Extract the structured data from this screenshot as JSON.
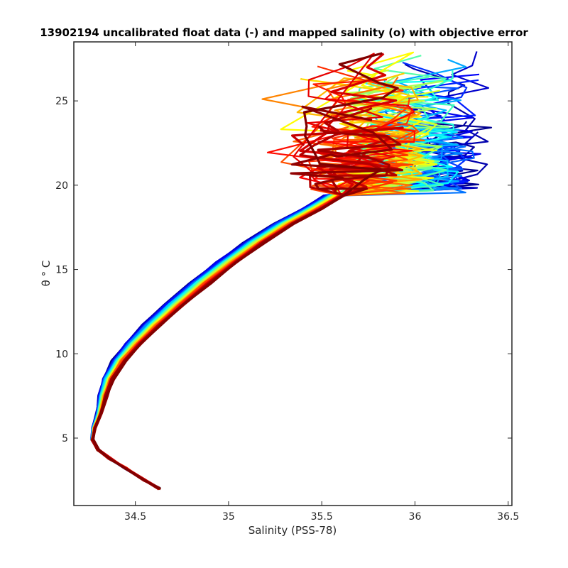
{
  "chart_data": {
    "type": "line",
    "title": "13902194 uncalibrated float data (-) and mapped salinity (o) with objective error",
    "xlabel": "Salinity (PSS-78)",
    "ylabel": "θ ° C",
    "xlim": [
      34.17,
      36.52
    ],
    "ylim": [
      1.0,
      28.5
    ],
    "x_ticks": [
      34.5,
      35,
      35.5,
      36,
      36.5
    ],
    "y_ticks": [
      5,
      10,
      15,
      20,
      25
    ],
    "x_tick_labels": [
      "34.5",
      "35",
      "35.5",
      "36",
      "36.5"
    ],
    "y_tick_labels": [
      "5",
      "10",
      "15",
      "20",
      "25"
    ],
    "grid": false,
    "legend": "none",
    "colormap": "jet",
    "colormap_stops": [
      "#00008f",
      "#0000ff",
      "#0080ff",
      "#00ffff",
      "#80ff80",
      "#ffff00",
      "#ff8000",
      "#ff0000",
      "#800000"
    ],
    "series_count": 60,
    "series_note": "One profile per cycle; color runs from dark blue (first cycle) to dark red (last cycle).",
    "deep_profile": [
      [
        34.63,
        2.0
      ],
      [
        34.55,
        2.5
      ],
      [
        34.45,
        3.2
      ],
      [
        34.36,
        3.8
      ],
      [
        34.3,
        4.3
      ],
      [
        34.27,
        4.9
      ],
      [
        34.28,
        5.6
      ],
      [
        34.31,
        6.5
      ],
      [
        34.33,
        7.5
      ],
      [
        34.36,
        8.5
      ],
      [
        34.42,
        9.6
      ],
      [
        34.5,
        10.6
      ],
      [
        34.6,
        11.7
      ],
      [
        34.72,
        12.9
      ],
      [
        34.86,
        14.2
      ],
      [
        35.0,
        15.4
      ],
      [
        35.15,
        16.6
      ],
      [
        35.31,
        17.7
      ],
      [
        35.46,
        18.6
      ],
      [
        35.58,
        19.4
      ]
    ],
    "blue_offset_salinity": -0.07,
    "red_offset_salinity": 0.04,
    "surface_branch": {
      "early_cycles_salinity_range": [
        35.9,
        36.4
      ],
      "late_cycles_salinity_range": [
        35.3,
        35.9
      ],
      "temperature_range": [
        19.5,
        27.8
      ]
    }
  }
}
